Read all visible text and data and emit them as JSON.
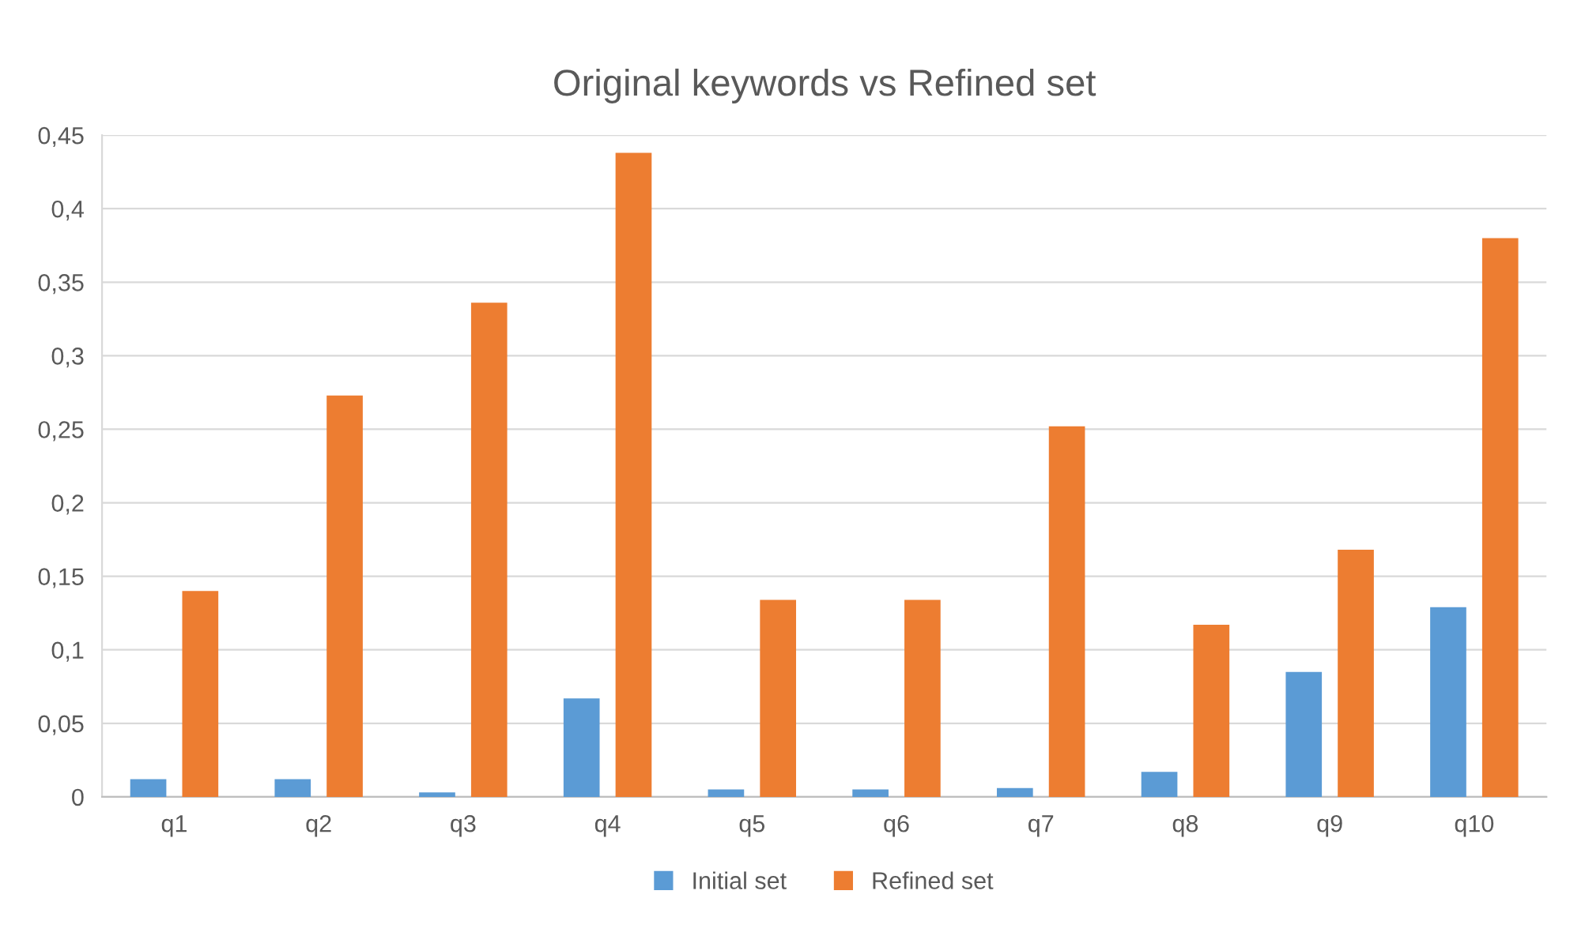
{
  "chart_data": {
    "type": "bar",
    "title": "Original keywords vs Refined set",
    "categories": [
      "q1",
      "q2",
      "q3",
      "q4",
      "q5",
      "q6",
      "q7",
      "q8",
      "q9",
      "q10"
    ],
    "series": [
      {
        "name": "Initial set",
        "color": "#5b9bd5",
        "values": [
          0.012,
          0.012,
          0.003,
          0.067,
          0.005,
          0.005,
          0.006,
          0.017,
          0.085,
          0.129
        ]
      },
      {
        "name": "Refined set",
        "color": "#ed7d31",
        "values": [
          0.14,
          0.273,
          0.336,
          0.438,
          0.134,
          0.134,
          0.252,
          0.117,
          0.168,
          0.38
        ]
      }
    ],
    "ylim": [
      0,
      0.45
    ],
    "yticks": [
      0,
      {
        "value": 0.05,
        "label": "0,05"
      },
      {
        "value": 0.1,
        "label": "0,1"
      },
      {
        "value": 0.15,
        "label": "0,15"
      },
      {
        "value": 0.2,
        "label": "0,2"
      },
      {
        "value": 0.25,
        "label": "0,25"
      },
      {
        "value": 0.3,
        "label": "0,3"
      },
      {
        "value": 0.35,
        "label": "0,35"
      },
      {
        "value": 0.4,
        "label": "0,4"
      },
      {
        "value": 0.45,
        "label": "0,45"
      }
    ],
    "grid": "y",
    "legend": "bottom"
  }
}
